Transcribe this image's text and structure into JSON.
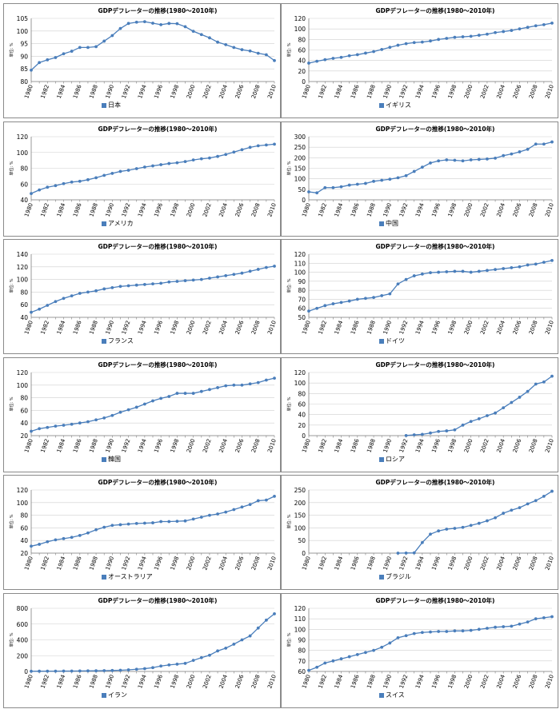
{
  "page": {
    "title": "GDPデフレーターの推移"
  },
  "series_color": "#4a7ebb",
  "chart_data": [
    {
      "type": "line",
      "title": "GDPデフレーターの推移(1980〜2010年)",
      "ylabel": "単位: %",
      "country": "日本",
      "x": [
        1980,
        1981,
        1982,
        1983,
        1984,
        1985,
        1986,
        1987,
        1988,
        1989,
        1990,
        1991,
        1992,
        1993,
        1994,
        1995,
        1996,
        1997,
        1998,
        1999,
        2000,
        2001,
        2002,
        2003,
        2004,
        2005,
        2006,
        2007,
        2008,
        2009,
        2010
      ],
      "xticks": [
        "1980",
        "1982",
        "1984",
        "1986",
        "1988",
        "1990",
        "1992",
        "1994",
        "1996",
        "1998",
        "2000",
        "2002",
        "2004",
        "2006",
        "2008",
        "2010"
      ],
      "ylim": [
        80,
        105
      ],
      "yticks": [
        80,
        85,
        90,
        95,
        100,
        105
      ],
      "values": [
        84.5,
        87.5,
        88.6,
        89.5,
        91,
        92,
        93.5,
        93.5,
        93.8,
        96,
        98.2,
        101,
        103,
        103.5,
        103.7,
        103.1,
        102.5,
        103.0,
        102.9,
        101.7,
        99.9,
        98.6,
        97.3,
        95.6,
        94.6,
        93.5,
        92.6,
        92.1,
        91.2,
        90.6,
        88.3
      ]
    },
    {
      "type": "line",
      "title": "GDPデフレーターの推移(1980〜2010年)",
      "ylabel": "単位: %",
      "country": "イギリス",
      "x": [
        1980,
        1981,
        1982,
        1983,
        1984,
        1985,
        1986,
        1987,
        1988,
        1989,
        1990,
        1991,
        1992,
        1993,
        1994,
        1995,
        1996,
        1997,
        1998,
        1999,
        2000,
        2001,
        2002,
        2003,
        2004,
        2005,
        2006,
        2007,
        2008,
        2009,
        2010
      ],
      "xticks": [
        "1980",
        "1982",
        "1984",
        "1986",
        "1988",
        "1990",
        "1992",
        "1994",
        "1996",
        "1998",
        "2000",
        "2002",
        "2004",
        "2006",
        "2008",
        "2010"
      ],
      "ylim": [
        0,
        120
      ],
      "yticks": [
        0,
        20,
        40,
        60,
        80,
        100,
        120
      ],
      "values": [
        35,
        38.5,
        41.5,
        44,
        46,
        49,
        51,
        54,
        57,
        61,
        65,
        69,
        72,
        74,
        75,
        77,
        80,
        82,
        84,
        85,
        86,
        88,
        90,
        93,
        95,
        97,
        100,
        103,
        106,
        108,
        111
      ]
    },
    {
      "type": "line",
      "title": "GDPデフレーターの推移(1980〜2010年)",
      "ylabel": "単位: %",
      "country": "アメリカ",
      "x": [
        1980,
        1981,
        1982,
        1983,
        1984,
        1985,
        1986,
        1987,
        1988,
        1989,
        1990,
        1991,
        1992,
        1993,
        1994,
        1995,
        1996,
        1997,
        1998,
        1999,
        2000,
        2001,
        2002,
        2003,
        2004,
        2005,
        2006,
        2007,
        2008,
        2009,
        2010
      ],
      "xticks": [
        "1980",
        "1982",
        "1984",
        "1986",
        "1988",
        "1990",
        "1992",
        "1994",
        "1996",
        "1998",
        "2000",
        "2002",
        "2004",
        "2006",
        "2008",
        "2010"
      ],
      "ylim": [
        40,
        120
      ],
      "yticks": [
        40,
        60,
        80,
        100,
        120
      ],
      "values": [
        48,
        52.5,
        56,
        58,
        60.5,
        62.5,
        63.5,
        65.5,
        68,
        71,
        73.5,
        76,
        77.5,
        79.5,
        81.5,
        83,
        84.5,
        86,
        87,
        88.5,
        90.5,
        92,
        93,
        95,
        97.5,
        100.5,
        103.5,
        106.5,
        108.5,
        109.5,
        110.5
      ]
    },
    {
      "type": "line",
      "title": "GDPデフレーターの推移(1980〜2010年)",
      "ylabel": "単位: %",
      "country": "中国",
      "x": [
        1980,
        1981,
        1982,
        1983,
        1984,
        1985,
        1986,
        1987,
        1988,
        1989,
        1990,
        1991,
        1992,
        1993,
        1994,
        1995,
        1996,
        1997,
        1998,
        1999,
        2000,
        2001,
        2002,
        2003,
        2004,
        2005,
        2006,
        2007,
        2008,
        2009,
        2010
      ],
      "xticks": [
        "1980",
        "1982",
        "1984",
        "1986",
        "1988",
        "1990",
        "1992",
        "1994",
        "1996",
        "1998",
        "2000",
        "2002",
        "2004",
        "2006",
        "2008",
        "2010"
      ],
      "ylim": [
        0,
        300
      ],
      "yticks": [
        0,
        50,
        100,
        150,
        200,
        250,
        300
      ],
      "values": [
        38,
        33,
        58,
        58,
        62,
        70,
        74,
        78,
        88,
        93,
        98,
        105,
        115,
        135,
        155,
        175,
        185,
        190,
        188,
        185,
        190,
        192,
        194,
        198,
        210,
        218,
        228,
        240,
        265,
        265,
        275
      ]
    },
    {
      "type": "line",
      "title": "GDPデフレーターの推移(1980〜2010年)",
      "ylabel": "単位: %",
      "country": "フランス",
      "x": [
        1980,
        1981,
        1982,
        1983,
        1984,
        1985,
        1986,
        1987,
        1988,
        1989,
        1990,
        1991,
        1992,
        1993,
        1994,
        1995,
        1996,
        1997,
        1998,
        1999,
        2000,
        2001,
        2002,
        2003,
        2004,
        2005,
        2006,
        2007,
        2008,
        2009,
        2010
      ],
      "xticks": [
        "1980",
        "1982",
        "1984",
        "1986",
        "1988",
        "1990",
        "1992",
        "1994",
        "1996",
        "1998",
        "2000",
        "2002",
        "2004",
        "2006",
        "2008",
        "2010"
      ],
      "ylim": [
        40,
        140
      ],
      "yticks": [
        40,
        60,
        80,
        100,
        120,
        140
      ],
      "values": [
        48,
        53,
        59,
        65,
        70,
        74,
        78,
        80,
        82,
        85,
        87,
        89,
        90,
        91,
        92,
        93,
        94,
        96,
        97,
        98,
        99,
        100,
        102,
        104,
        106,
        108,
        110,
        113,
        116,
        119,
        121
      ]
    },
    {
      "type": "line",
      "title": "GDPデフレーターの推移(1980〜2010年)",
      "ylabel": "単位: %",
      "country": "ドイツ",
      "x": [
        1980,
        1981,
        1982,
        1983,
        1984,
        1985,
        1986,
        1987,
        1988,
        1989,
        1990,
        1991,
        1992,
        1993,
        1994,
        1995,
        1996,
        1997,
        1998,
        1999,
        2000,
        2001,
        2002,
        2003,
        2004,
        2005,
        2006,
        2007,
        2008,
        2009,
        2010
      ],
      "xticks": [
        "1980",
        "1982",
        "1984",
        "1986",
        "1988",
        "1990",
        "1992",
        "1994",
        "1996",
        "1998",
        "2000",
        "2002",
        "2004",
        "2006",
        "2008",
        "2010"
      ],
      "ylim": [
        50,
        120
      ],
      "yticks": [
        50,
        60,
        70,
        80,
        90,
        100,
        110,
        120
      ],
      "values": [
        57,
        60,
        63,
        65,
        66.5,
        68,
        70,
        71,
        72,
        74,
        76,
        87,
        92,
        96,
        98,
        99.5,
        100,
        100.5,
        101,
        101,
        100,
        101,
        102,
        103,
        104,
        105,
        106,
        108,
        109,
        111,
        113
      ]
    },
    {
      "type": "line",
      "title": "GDPデフレーターの推移(1980〜2010年)",
      "ylabel": "単位: %",
      "country": "韓国",
      "x": [
        1980,
        1981,
        1982,
        1983,
        1984,
        1985,
        1986,
        1987,
        1988,
        1989,
        1990,
        1991,
        1992,
        1993,
        1994,
        1995,
        1996,
        1997,
        1998,
        1999,
        2000,
        2001,
        2002,
        2003,
        2004,
        2005,
        2006,
        2007,
        2008,
        2009,
        2010
      ],
      "xticks": [
        "1980",
        "1982",
        "1984",
        "1986",
        "1988",
        "1990",
        "1992",
        "1994",
        "1996",
        "1998",
        "2000",
        "2002",
        "2004",
        "2006",
        "2008",
        "2010"
      ],
      "ylim": [
        20,
        120
      ],
      "yticks": [
        20,
        40,
        60,
        80,
        100,
        120
      ],
      "values": [
        27,
        31,
        33,
        35,
        36.5,
        38,
        40,
        42,
        45,
        48,
        52,
        57,
        61,
        65,
        70,
        75,
        79,
        82,
        87,
        87,
        87,
        90,
        93,
        96,
        99,
        100,
        100,
        102,
        104,
        108,
        111
      ]
    },
    {
      "type": "line",
      "title": "GDPデフレーターの推移(1980〜2010年)",
      "ylabel": "単位: %",
      "country": "ロシア",
      "x": [
        1980,
        1981,
        1982,
        1983,
        1984,
        1985,
        1986,
        1987,
        1988,
        1989,
        1990,
        1991,
        1992,
        1993,
        1994,
        1995,
        1996,
        1997,
        1998,
        1999,
        2000,
        2001,
        2002,
        2003,
        2004,
        2005,
        2006,
        2007,
        2008,
        2009,
        2010
      ],
      "xticks": [
        "1980",
        "1982",
        "1984",
        "1986",
        "1988",
        "1990",
        "1992",
        "1994",
        "1996",
        "1998",
        "2000",
        "2002",
        "2004",
        "2006",
        "2008",
        "2010"
      ],
      "ylim": [
        0,
        120
      ],
      "yticks": [
        0,
        20,
        40,
        60,
        80,
        100,
        120
      ],
      "values": [
        null,
        null,
        null,
        null,
        null,
        null,
        null,
        null,
        null,
        null,
        null,
        null,
        0.2,
        1.5,
        2.5,
        5,
        8,
        9,
        11,
        20,
        27,
        32,
        38,
        43,
        53,
        63,
        73,
        84,
        98,
        102,
        113
      ]
    },
    {
      "type": "line",
      "title": "GDPデフレーターの推移(1980〜2010年)",
      "ylabel": "単位: %",
      "country": "オーストラリア",
      "x": [
        1980,
        1981,
        1982,
        1983,
        1984,
        1985,
        1986,
        1987,
        1988,
        1989,
        1990,
        1991,
        1992,
        1993,
        1994,
        1995,
        1996,
        1997,
        1998,
        1999,
        2000,
        2001,
        2002,
        2003,
        2004,
        2005,
        2006,
        2007,
        2008,
        2009,
        2010
      ],
      "xticks": [
        "1980",
        "1982",
        "1984",
        "1986",
        "1988",
        "1990",
        "1992",
        "1994",
        "1996",
        "1998",
        "2000",
        "2002",
        "2004",
        "2006",
        "2008",
        "2010"
      ],
      "ylim": [
        20,
        120
      ],
      "yticks": [
        20,
        40,
        60,
        80,
        100,
        120
      ],
      "values": [
        31,
        34,
        38,
        41,
        43,
        45,
        48,
        52,
        57,
        61,
        64,
        65,
        66,
        67,
        67.5,
        68,
        70,
        70,
        70.5,
        71,
        74,
        77,
        80,
        82,
        85,
        89,
        93,
        97,
        103,
        104,
        110
      ]
    },
    {
      "type": "line",
      "title": "GDPデフレーターの推移(1980〜2010年)",
      "ylabel": "単位: %",
      "country": "ブラジル",
      "x": [
        1980,
        1981,
        1982,
        1983,
        1984,
        1985,
        1986,
        1987,
        1988,
        1989,
        1990,
        1991,
        1992,
        1993,
        1994,
        1995,
        1996,
        1997,
        1998,
        1999,
        2000,
        2001,
        2002,
        2003,
        2004,
        2005,
        2006,
        2007,
        2008,
        2009,
        2010
      ],
      "xticks": [
        "1980",
        "1982",
        "1984",
        "1986",
        "1988",
        "1990",
        "1992",
        "1994",
        "1996",
        "1998",
        "2000",
        "2002",
        "2004",
        "2006",
        "2008",
        "2010"
      ],
      "ylim": [
        0,
        250
      ],
      "yticks": [
        0,
        50,
        100,
        150,
        200,
        250
      ],
      "values": [
        null,
        null,
        null,
        null,
        null,
        null,
        null,
        null,
        null,
        null,
        null,
        0.1,
        0.5,
        1,
        42,
        75,
        88,
        95,
        98,
        102,
        110,
        118,
        128,
        140,
        158,
        170,
        180,
        195,
        208,
        225,
        245
      ]
    },
    {
      "type": "line",
      "title": "GDPデフレーターの推移(1980〜2010年)",
      "ylabel": "単位: %",
      "country": "イラン",
      "x": [
        1980,
        1981,
        1982,
        1983,
        1984,
        1985,
        1986,
        1987,
        1988,
        1989,
        1990,
        1991,
        1992,
        1993,
        1994,
        1995,
        1996,
        1997,
        1998,
        1999,
        2000,
        2001,
        2002,
        2003,
        2004,
        2005,
        2006,
        2007,
        2008,
        2009,
        2010
      ],
      "xticks": [
        "1980",
        "1982",
        "1984",
        "1986",
        "1988",
        "1990",
        "1992",
        "1994",
        "1996",
        "1998",
        "2000",
        "2002",
        "2004",
        "2006",
        "2008",
        "2010"
      ],
      "ylim": [
        0,
        800
      ],
      "yticks": [
        0,
        200,
        400,
        600,
        800
      ],
      "values": [
        2,
        3,
        3.5,
        4,
        4.5,
        5,
        6,
        7,
        8,
        10,
        12,
        15,
        20,
        28,
        35,
        48,
        68,
        82,
        92,
        102,
        140,
        175,
        205,
        260,
        295,
        345,
        400,
        450,
        550,
        650,
        730
      ]
    },
    {
      "type": "line",
      "title": "GDPデフレーターの推移(1980〜2010年)",
      "ylabel": "単位: %",
      "country": "スイス",
      "x": [
        1980,
        1981,
        1982,
        1983,
        1984,
        1985,
        1986,
        1987,
        1988,
        1989,
        1990,
        1991,
        1992,
        1993,
        1994,
        1995,
        1996,
        1997,
        1998,
        1999,
        2000,
        2001,
        2002,
        2003,
        2004,
        2005,
        2006,
        2007,
        2008,
        2009,
        2010
      ],
      "xticks": [
        "1980",
        "1982",
        "1984",
        "1986",
        "1988",
        "1990",
        "1992",
        "1994",
        "1996",
        "1998",
        "2000",
        "2002",
        "2004",
        "2006",
        "2008",
        "2010"
      ],
      "ylim": [
        60,
        120
      ],
      "yticks": [
        60,
        70,
        80,
        90,
        100,
        110,
        120
      ],
      "values": [
        61,
        64,
        68,
        70,
        72,
        74,
        76,
        78,
        80,
        83,
        87,
        92,
        94,
        96,
        97,
        97.5,
        98,
        98,
        98.5,
        98.5,
        99,
        100,
        101,
        102,
        102.5,
        103,
        105,
        107,
        110,
        111,
        112
      ]
    }
  ]
}
